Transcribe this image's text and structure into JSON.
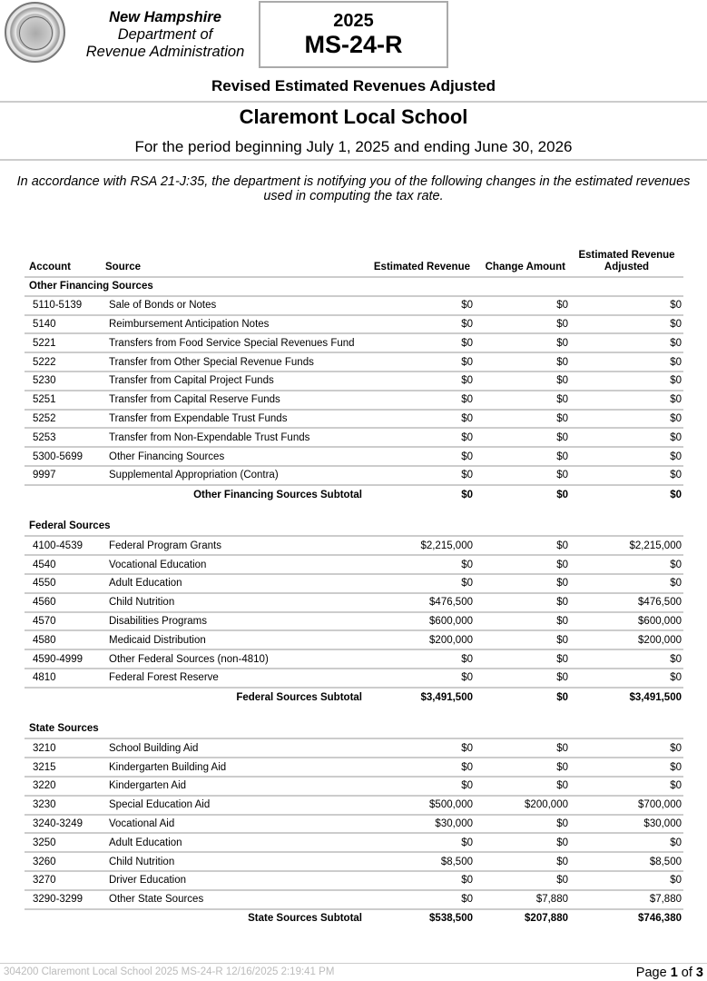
{
  "header": {
    "agency_line1": "New Hampshire",
    "agency_line2": "Department of",
    "agency_line3": "Revenue Administration",
    "year": "2025",
    "form": "MS-24-R",
    "subtitle": "Revised Estimated Revenues Adjusted",
    "entity": "Claremont Local School",
    "period": "For the period beginning July 1, 2025 and ending June 30, 2026",
    "notice": "In accordance with RSA 21-J:35, the department is notifying you of the following changes in the estimated revenues used in computing the tax rate."
  },
  "table": {
    "columns": [
      "Account",
      "Source",
      "Estimated Revenue",
      "Change Amount",
      "Estimated Revenue Adjusted"
    ],
    "sections": [
      {
        "name": "Other Financing Sources",
        "rows": [
          [
            "5110-5139",
            "Sale of Bonds or Notes",
            "$0",
            "$0",
            "$0"
          ],
          [
            "5140",
            "Reimbursement Anticipation Notes",
            "$0",
            "$0",
            "$0"
          ],
          [
            "5221",
            "Transfers from Food Service Special Revenues Fund",
            "$0",
            "$0",
            "$0"
          ],
          [
            "5222",
            "Transfer from Other Special Revenue Funds",
            "$0",
            "$0",
            "$0"
          ],
          [
            "5230",
            "Transfer from Capital Project Funds",
            "$0",
            "$0",
            "$0"
          ],
          [
            "5251",
            "Transfer from Capital Reserve Funds",
            "$0",
            "$0",
            "$0"
          ],
          [
            "5252",
            "Transfer from Expendable Trust Funds",
            "$0",
            "$0",
            "$0"
          ],
          [
            "5253",
            "Transfer from Non-Expendable Trust Funds",
            "$0",
            "$0",
            "$0"
          ],
          [
            "5300-5699",
            "Other Financing Sources",
            "$0",
            "$0",
            "$0"
          ],
          [
            "9997",
            "Supplemental Appropriation (Contra)",
            "$0",
            "$0",
            "$0"
          ]
        ],
        "subtotal": [
          "Other Financing Sources Subtotal",
          "$0",
          "$0",
          "$0"
        ]
      },
      {
        "name": "Federal Sources",
        "rows": [
          [
            "4100-4539",
            "Federal Program Grants",
            "$2,215,000",
            "$0",
            "$2,215,000"
          ],
          [
            "4540",
            "Vocational Education",
            "$0",
            "$0",
            "$0"
          ],
          [
            "4550",
            "Adult Education",
            "$0",
            "$0",
            "$0"
          ],
          [
            "4560",
            "Child Nutrition",
            "$476,500",
            "$0",
            "$476,500"
          ],
          [
            "4570",
            "Disabilities Programs",
            "$600,000",
            "$0",
            "$600,000"
          ],
          [
            "4580",
            "Medicaid Distribution",
            "$200,000",
            "$0",
            "$200,000"
          ],
          [
            "4590-4999",
            "Other Federal Sources (non-4810)",
            "$0",
            "$0",
            "$0"
          ],
          [
            "4810",
            "Federal Forest Reserve",
            "$0",
            "$0",
            "$0"
          ]
        ],
        "subtotal": [
          "Federal Sources Subtotal",
          "$3,491,500",
          "$0",
          "$3,491,500"
        ]
      },
      {
        "name": "State Sources",
        "rows": [
          [
            "3210",
            "School Building Aid",
            "$0",
            "$0",
            "$0"
          ],
          [
            "3215",
            "Kindergarten Building Aid",
            "$0",
            "$0",
            "$0"
          ],
          [
            "3220",
            "Kindergarten Aid",
            "$0",
            "$0",
            "$0"
          ],
          [
            "3230",
            "Special Education Aid",
            "$500,000",
            "$200,000",
            "$700,000"
          ],
          [
            "3240-3249",
            "Vocational Aid",
            "$30,000",
            "$0",
            "$30,000"
          ],
          [
            "3250",
            "Adult Education",
            "$0",
            "$0",
            "$0"
          ],
          [
            "3260",
            "Child Nutrition",
            "$8,500",
            "$0",
            "$8,500"
          ],
          [
            "3270",
            "Driver Education",
            "$0",
            "$0",
            "$0"
          ],
          [
            "3290-3299",
            "Other State Sources",
            "$0",
            "$7,880",
            "$7,880"
          ]
        ],
        "subtotal": [
          "State Sources Subtotal",
          "$538,500",
          "$207,880",
          "$746,380"
        ]
      }
    ]
  },
  "footer": {
    "text": "304200 Claremont Local School 2025 MS-24-R  12/16/2025 2:19:41 PM",
    "page_prefix": "Page",
    "page_current": "1",
    "page_of": "of",
    "page_total": "3"
  }
}
